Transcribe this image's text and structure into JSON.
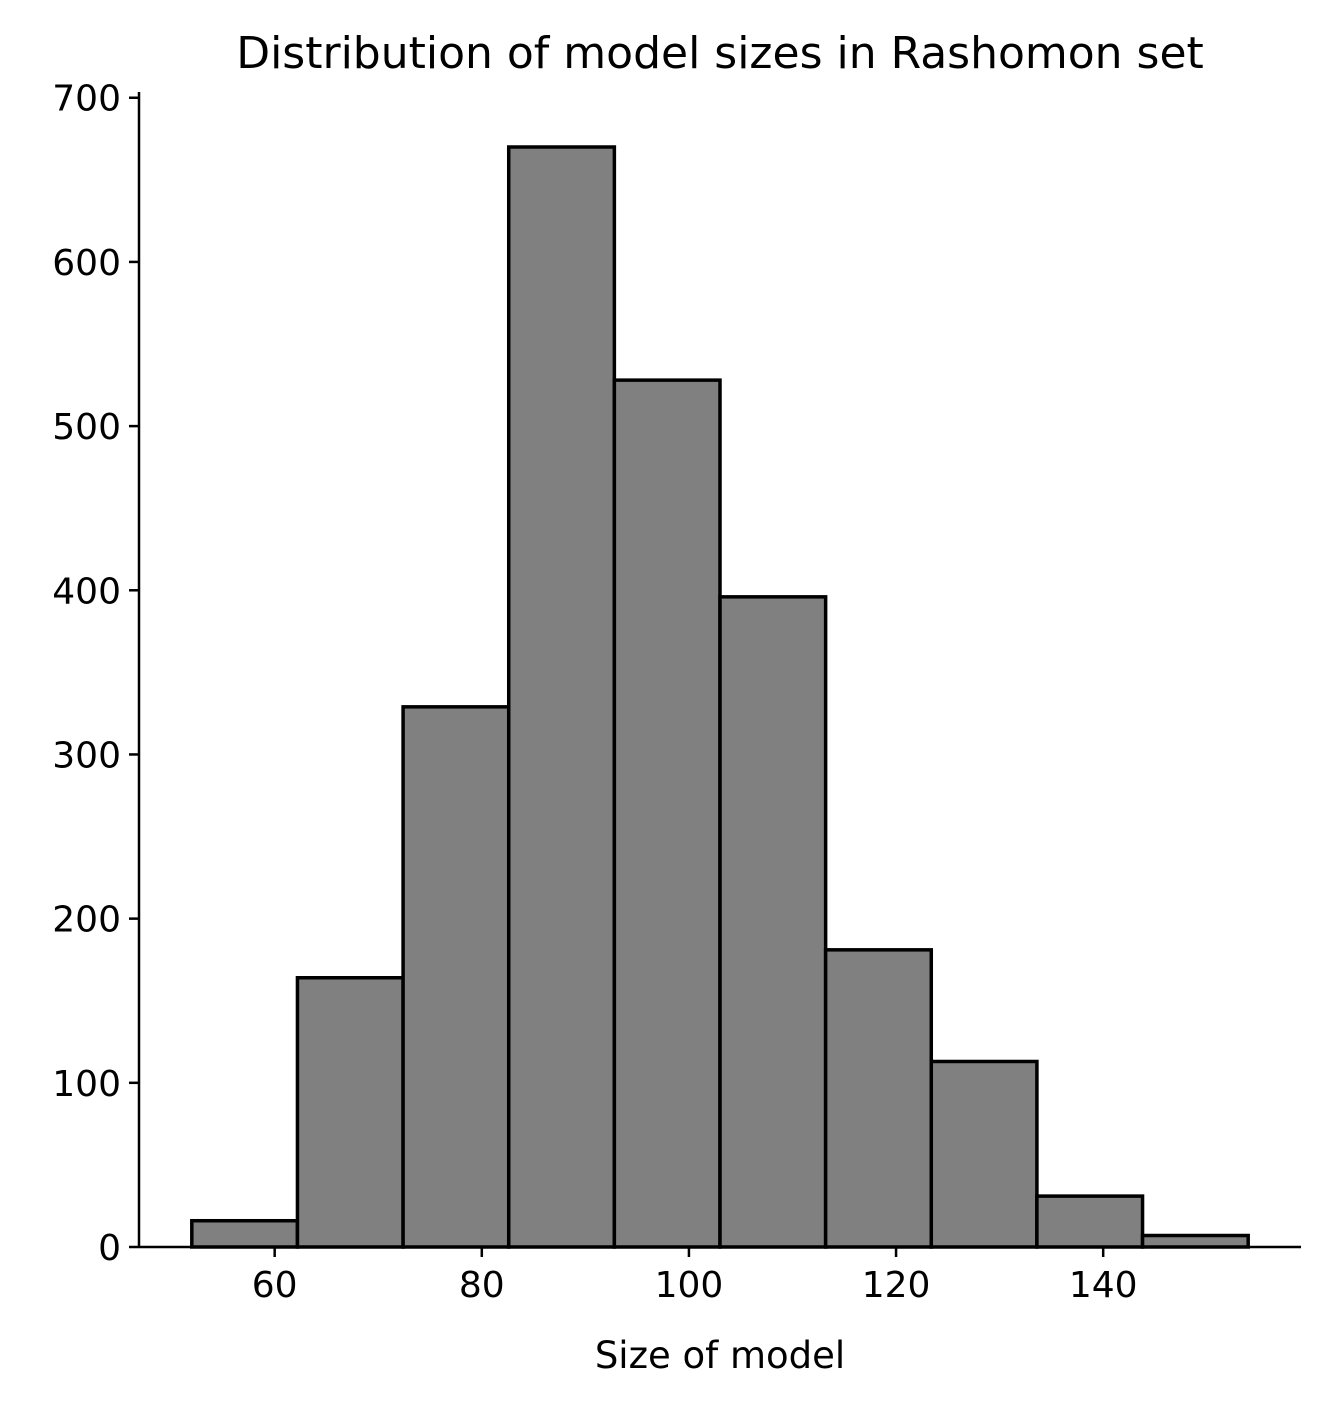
{
  "chart_data": {
    "type": "bar",
    "title": "Distribution of model sizes in Rashomon set",
    "xlabel": "Size of model",
    "ylabel": "",
    "bins": [
      {
        "x0": 52,
        "x1": 62.2,
        "count": 16
      },
      {
        "x0": 62.2,
        "x1": 72.4,
        "count": 164
      },
      {
        "x0": 72.4,
        "x1": 82.6,
        "count": 329
      },
      {
        "x0": 82.6,
        "x1": 92.8,
        "count": 670
      },
      {
        "x0": 92.8,
        "x1": 103,
        "count": 528
      },
      {
        "x0": 103,
        "x1": 113.2,
        "count": 396
      },
      {
        "x0": 113.2,
        "x1": 123.4,
        "count": 181
      },
      {
        "x0": 123.4,
        "x1": 133.6,
        "count": 113
      },
      {
        "x0": 133.6,
        "x1": 143.8,
        "count": 31
      },
      {
        "x0": 143.8,
        "x1": 154,
        "count": 7
      }
    ],
    "xlim": [
      46.9,
      159.1
    ],
    "ylim": [
      0,
      703.5
    ],
    "xticks": [
      60,
      80,
      100,
      120,
      140
    ],
    "yticks": [
      0,
      100,
      200,
      300,
      400,
      500,
      600,
      700
    ],
    "bar_color": "#808080",
    "edge_color": "#000000",
    "grid": false
  }
}
